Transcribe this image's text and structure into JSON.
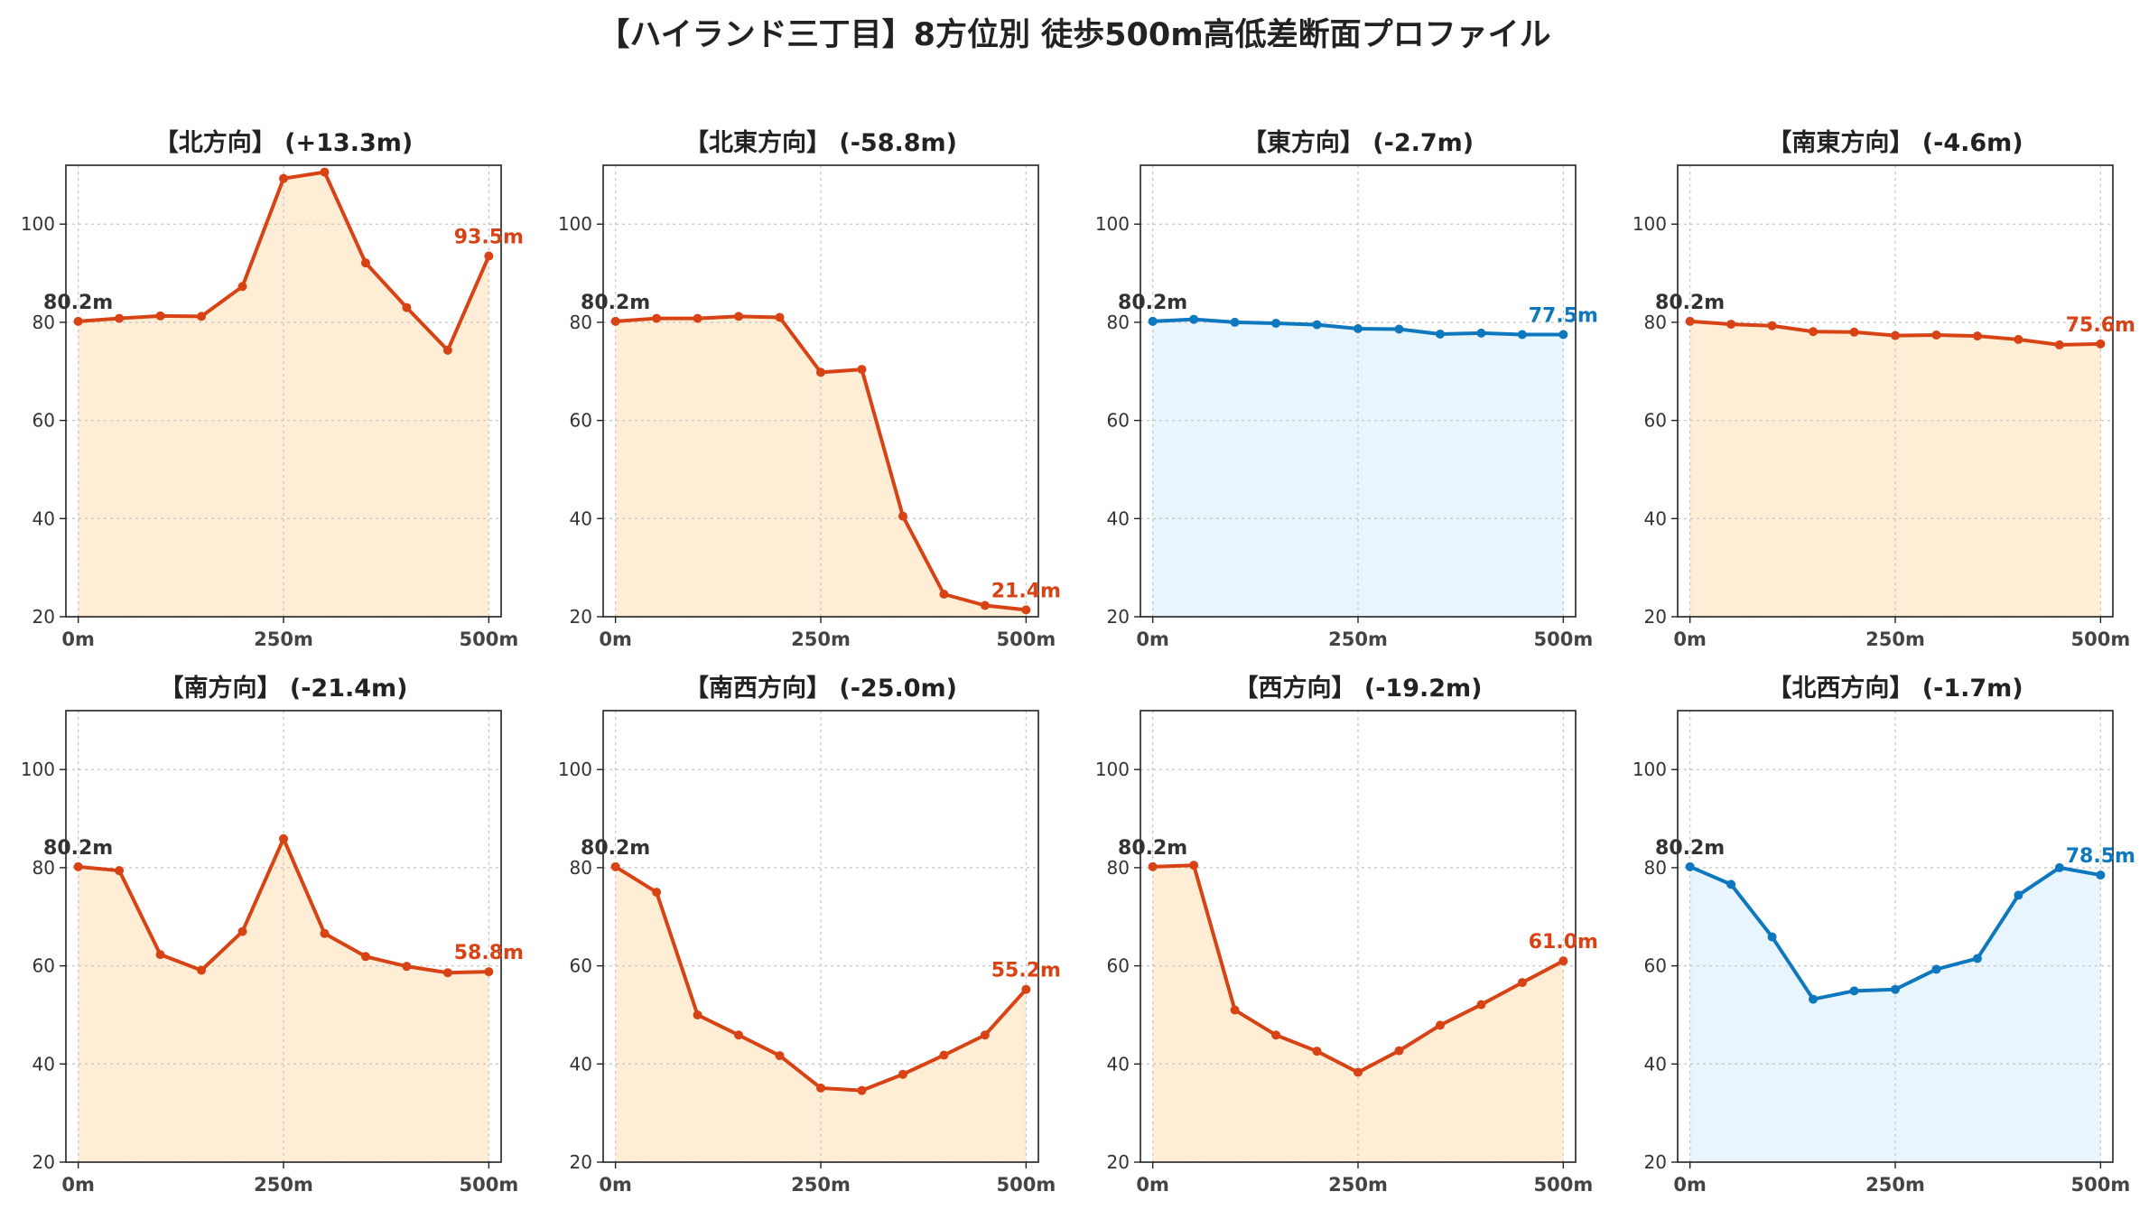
{
  "title": "【ハイランド三丁目】8方位別 徒歩500m高低差断面プロファイル",
  "colors": {
    "down_line": "#d84315",
    "down_fill": "#ffedd5",
    "flat_line": "#0d78be",
    "flat_fill": "#e8f5fc",
    "start_label": "#333333",
    "grid": "#c8c8c8"
  },
  "chart_data": [
    {
      "type": "area",
      "title": "【北方向】 (+13.3m)",
      "x": [
        0,
        50,
        100,
        150,
        200,
        250,
        300,
        350,
        400,
        450,
        500
      ],
      "values": [
        80.2,
        80.8,
        81.3,
        81.2,
        87.3,
        109.3,
        110.6,
        92.1,
        83.0,
        74.3,
        93.5
      ],
      "start_label": "80.2m",
      "end_label": "93.5m",
      "color": "down",
      "xlim": [
        -15,
        515
      ],
      "ylim": [
        20,
        112
      ],
      "xticks": [
        0,
        250,
        500
      ],
      "xtick_labels": [
        "0m",
        "250m",
        "500m"
      ],
      "yticks": [
        20,
        40,
        60,
        80,
        100
      ],
      "grid": true
    },
    {
      "type": "area",
      "title": "【北東方向】 (-58.8m)",
      "x": [
        0,
        50,
        100,
        150,
        200,
        250,
        300,
        350,
        400,
        450,
        500
      ],
      "values": [
        80.2,
        80.8,
        80.8,
        81.2,
        81.0,
        69.8,
        70.4,
        40.5,
        24.6,
        22.3,
        21.4
      ],
      "start_label": "80.2m",
      "end_label": "21.4m",
      "color": "down",
      "xlim": [
        -15,
        515
      ],
      "ylim": [
        20,
        112
      ],
      "xticks": [
        0,
        250,
        500
      ],
      "xtick_labels": [
        "0m",
        "250m",
        "500m"
      ],
      "yticks": [
        20,
        40,
        60,
        80,
        100
      ],
      "grid": true
    },
    {
      "type": "area",
      "title": "【東方向】 (-2.7m)",
      "x": [
        0,
        50,
        100,
        150,
        200,
        250,
        300,
        350,
        400,
        450,
        500
      ],
      "values": [
        80.2,
        80.6,
        80.0,
        79.8,
        79.5,
        78.7,
        78.6,
        77.6,
        77.8,
        77.5,
        77.5
      ],
      "start_label": "80.2m",
      "end_label": "77.5m",
      "color": "flat",
      "xlim": [
        -15,
        515
      ],
      "ylim": [
        20,
        112
      ],
      "xticks": [
        0,
        250,
        500
      ],
      "xtick_labels": [
        "0m",
        "250m",
        "500m"
      ],
      "yticks": [
        20,
        40,
        60,
        80,
        100
      ],
      "grid": true
    },
    {
      "type": "area",
      "title": "【南東方向】 (-4.6m)",
      "x": [
        0,
        50,
        100,
        150,
        200,
        250,
        300,
        350,
        400,
        450,
        500
      ],
      "values": [
        80.2,
        79.6,
        79.3,
        78.1,
        78.0,
        77.3,
        77.4,
        77.2,
        76.5,
        75.4,
        75.6
      ],
      "start_label": "80.2m",
      "end_label": "75.6m",
      "color": "down",
      "xlim": [
        -15,
        515
      ],
      "ylim": [
        20,
        112
      ],
      "xticks": [
        0,
        250,
        500
      ],
      "xtick_labels": [
        "0m",
        "250m",
        "500m"
      ],
      "yticks": [
        20,
        40,
        60,
        80,
        100
      ],
      "grid": true
    },
    {
      "type": "area",
      "title": "【南方向】 (-21.4m)",
      "x": [
        0,
        50,
        100,
        150,
        200,
        250,
        300,
        350,
        400,
        450,
        500
      ],
      "values": [
        80.2,
        79.4,
        62.3,
        59.1,
        67.0,
        85.9,
        66.6,
        61.9,
        59.9,
        58.6,
        58.8
      ],
      "start_label": "80.2m",
      "end_label": "58.8m",
      "color": "down",
      "xlim": [
        -15,
        515
      ],
      "ylim": [
        20,
        112
      ],
      "xticks": [
        0,
        250,
        500
      ],
      "xtick_labels": [
        "0m",
        "250m",
        "500m"
      ],
      "yticks": [
        20,
        40,
        60,
        80,
        100
      ],
      "grid": true
    },
    {
      "type": "area",
      "title": "【南西方向】 (-25.0m)",
      "x": [
        0,
        50,
        100,
        150,
        200,
        250,
        300,
        350,
        400,
        450,
        500
      ],
      "values": [
        80.2,
        75.0,
        50.0,
        45.9,
        41.7,
        35.1,
        34.6,
        37.9,
        41.8,
        45.9,
        55.2
      ],
      "start_label": "80.2m",
      "end_label": "55.2m",
      "color": "down",
      "xlim": [
        -15,
        515
      ],
      "ylim": [
        20,
        112
      ],
      "xticks": [
        0,
        250,
        500
      ],
      "xtick_labels": [
        "0m",
        "250m",
        "500m"
      ],
      "yticks": [
        20,
        40,
        60,
        80,
        100
      ],
      "grid": true
    },
    {
      "type": "area",
      "title": "【西方向】 (-19.2m)",
      "x": [
        0,
        50,
        100,
        150,
        200,
        250,
        300,
        350,
        400,
        450,
        500
      ],
      "values": [
        80.2,
        80.5,
        51.0,
        45.9,
        42.6,
        38.3,
        42.7,
        47.9,
        52.1,
        56.6,
        61.0
      ],
      "start_label": "80.2m",
      "end_label": "61.0m",
      "color": "down",
      "xlim": [
        -15,
        515
      ],
      "ylim": [
        20,
        112
      ],
      "xticks": [
        0,
        250,
        500
      ],
      "xtick_labels": [
        "0m",
        "250m",
        "500m"
      ],
      "yticks": [
        20,
        40,
        60,
        80,
        100
      ],
      "grid": true
    },
    {
      "type": "area",
      "title": "【北西方向】 (-1.7m)",
      "x": [
        0,
        50,
        100,
        150,
        200,
        250,
        300,
        350,
        400,
        450,
        500
      ],
      "values": [
        80.2,
        76.6,
        65.9,
        53.2,
        54.9,
        55.2,
        59.3,
        61.5,
        74.4,
        80.0,
        78.5
      ],
      "start_label": "80.2m",
      "end_label": "78.5m",
      "color": "flat",
      "xlim": [
        -15,
        515
      ],
      "ylim": [
        20,
        112
      ],
      "xticks": [
        0,
        250,
        500
      ],
      "xtick_labels": [
        "0m",
        "250m",
        "500m"
      ],
      "yticks": [
        20,
        40,
        60,
        80,
        100
      ],
      "grid": true
    }
  ]
}
